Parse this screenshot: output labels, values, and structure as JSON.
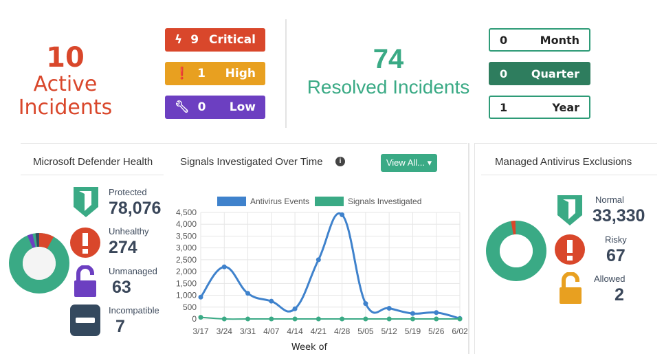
{
  "active": {
    "count": "10",
    "label1": "Active",
    "label2": "Incidents"
  },
  "severity": [
    {
      "icon": "bolt-icon",
      "count": "9",
      "label": "Critical",
      "color": "#d9472b"
    },
    {
      "icon": "exclamation-icon",
      "count": "1",
      "label": "High",
      "color": "#e8a020"
    },
    {
      "icon": "wrench-icon",
      "count": "0",
      "label": "Low",
      "color": "#6c3fc1"
    }
  ],
  "resolved": {
    "count": "74",
    "label": "Resolved Incidents"
  },
  "periods": [
    {
      "count": "0",
      "label": "Month"
    },
    {
      "count": "0",
      "label": "Quarter",
      "active": true
    },
    {
      "count": "1",
      "label": "Year"
    }
  ],
  "defender": {
    "title": "Microsoft Defender Health",
    "items": [
      {
        "label": "Protected",
        "value": "78,076",
        "color": "#3aaa85"
      },
      {
        "label": "Unhealthy",
        "value": "274",
        "color": "#d9472b"
      },
      {
        "label": "Unmanaged",
        "value": "63",
        "color": "#6c3fc1"
      },
      {
        "label": "Incompatible",
        "value": "7",
        "color": "#34495e"
      }
    ]
  },
  "signals": {
    "title": "Signals Investigated Over Time",
    "view_all": "View All..."
  },
  "chart_data": {
    "type": "line",
    "title": "Signals Investigated Over Time",
    "xlabel": "Week of",
    "ylabel": "",
    "ylim": [
      0,
      4500
    ],
    "yticks": [
      "0",
      "500",
      "1,000",
      "1,500",
      "2,000",
      "2,500",
      "3,000",
      "3,500",
      "4,000",
      "4,500"
    ],
    "categories": [
      "3/17",
      "3/24",
      "3/31",
      "4/07",
      "4/14",
      "4/21",
      "4/28",
      "5/05",
      "5/12",
      "5/19",
      "5/26",
      "6/02"
    ],
    "series": [
      {
        "name": "Antivirus Events",
        "color": "#3f82cc",
        "values": [
          920,
          2200,
          1080,
          750,
          430,
          2500,
          4400,
          650,
          450,
          230,
          270,
          20
        ]
      },
      {
        "name": "Signals Investigated",
        "color": "#3aaa85",
        "values": [
          70,
          0,
          0,
          0,
          0,
          0,
          0,
          0,
          0,
          0,
          0,
          0
        ]
      }
    ],
    "legend": "top"
  },
  "exclusions": {
    "title": "Managed Antivirus Exclusions",
    "items": [
      {
        "label": "Normal",
        "value": "33,330",
        "color": "#3aaa85"
      },
      {
        "label": "Risky",
        "value": "67",
        "color": "#d9472b"
      },
      {
        "label": "Allowed",
        "value": "2",
        "color": "#e8a020"
      }
    ]
  }
}
